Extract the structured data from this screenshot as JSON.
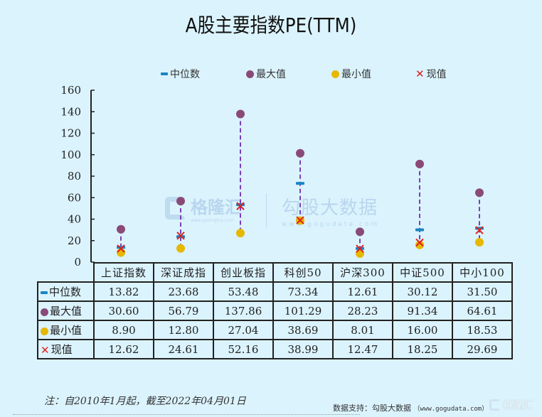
{
  "title": "A股主要指数PE(TTM)",
  "legend": {
    "items": [
      {
        "label": "中位数",
        "marker": "dash",
        "color": "#1a85c4"
      },
      {
        "label": "最大值",
        "marker": "dot",
        "color": "#8a4a78"
      },
      {
        "label": "最小值",
        "marker": "dot",
        "color": "#e6b800"
      },
      {
        "label": "现值",
        "marker": "x",
        "color": "#e02020"
      }
    ]
  },
  "colors": {
    "median": "#1a85c4",
    "max": "#8a4a78",
    "min": "#e6b800",
    "current": "#e02020",
    "range_line": "#7b3fb8",
    "background": "#dbf3fd"
  },
  "chart_data": {
    "type": "scatter",
    "title": "A股主要指数PE(TTM)",
    "xlabel": "",
    "ylabel": "",
    "ylim": [
      0,
      160
    ],
    "yticks": [
      0,
      20,
      40,
      60,
      80,
      100,
      120,
      140,
      160
    ],
    "grid": false,
    "legend_position": "top",
    "categories": [
      "上证指数",
      "深证成指",
      "创业板指",
      "科创50",
      "沪深300",
      "中证500",
      "中小100"
    ],
    "series": [
      {
        "name": "中位数",
        "marker": "dash",
        "values": [
          13.82,
          23.68,
          53.48,
          73.34,
          12.61,
          30.12,
          31.5
        ]
      },
      {
        "name": "最大值",
        "marker": "circle",
        "values": [
          30.6,
          56.79,
          137.86,
          101.29,
          28.23,
          91.34,
          64.61
        ]
      },
      {
        "name": "最小值",
        "marker": "circle",
        "values": [
          8.9,
          12.8,
          27.04,
          38.69,
          8.01,
          16.0,
          18.53
        ]
      },
      {
        "name": "现值",
        "marker": "x",
        "values": [
          12.62,
          24.61,
          52.16,
          38.99,
          12.47,
          18.25,
          29.69
        ]
      }
    ],
    "annotations": [
      "dashed vertical line from 最小值 to 最大值 for each category"
    ]
  },
  "table": {
    "headers": [
      "上证指数",
      "深证成指",
      "创业板指",
      "科创50",
      "沪深300",
      "中证500",
      "中小100"
    ],
    "rows": [
      {
        "label": "中位数",
        "marker": "dash",
        "values": [
          "13.82",
          "23.68",
          "53.48",
          "73.34",
          "12.61",
          "30.12",
          "31.50"
        ]
      },
      {
        "label": "最大值",
        "marker": "dot-max",
        "values": [
          "30.60",
          "56.79",
          "137.86",
          "101.29",
          "28.23",
          "91.34",
          "64.61"
        ]
      },
      {
        "label": "最小值",
        "marker": "dot-min",
        "values": [
          "8.90",
          "12.80",
          "27.04",
          "38.69",
          "8.01",
          "16.00",
          "18.53"
        ]
      },
      {
        "label": "现值",
        "marker": "x",
        "values": [
          "12.62",
          "24.61",
          "52.16",
          "38.99",
          "12.47",
          "18.25",
          "29.69"
        ]
      }
    ]
  },
  "watermark": {
    "brand1": "格隆汇",
    "brand1_url": "www.gelonghui.com",
    "brand2": "勾股大数据",
    "brand2_url": "www.gogudata.com"
  },
  "footer": {
    "note": "注：自2010年1月起，截至2022年04月01日",
    "source_label": "数据支持：勾股大数据",
    "source_url": "（www.gogudata.com）",
    "corner_logo": "格隆汇"
  }
}
